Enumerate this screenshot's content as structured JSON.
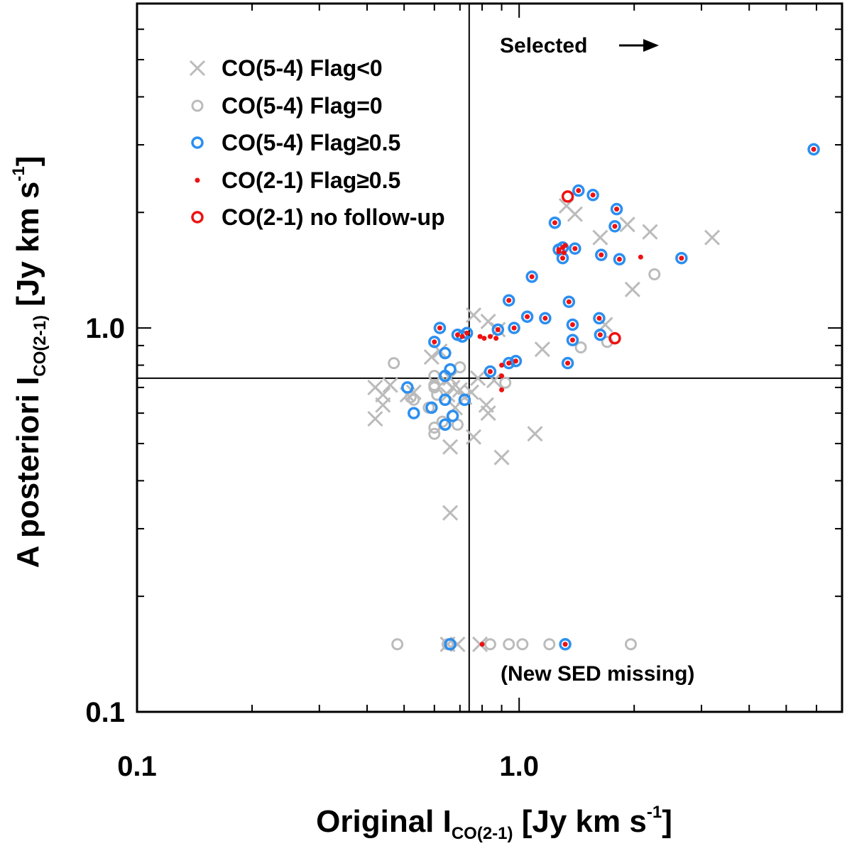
{
  "chart_data": {
    "type": "scatter",
    "x_scale": "log",
    "y_scale": "log",
    "xlim": [
      0.1,
      7.0
    ],
    "ylim": [
      0.1,
      7.0
    ],
    "xlabel": {
      "main": "Original I",
      "sub": "CO(2-1)",
      "units": " [Jy km s",
      "sup": "-1",
      "end": "]"
    },
    "ylabel": {
      "main": "A posteriori I",
      "sub": "CO(2-1)",
      "units": " [Jy km s",
      "sup": "-1",
      "end": "]"
    },
    "x_tick_labels": [
      {
        "value": 0.1,
        "label": "0.1"
      },
      {
        "value": 1.0,
        "label": "1.0"
      }
    ],
    "y_tick_labels": [
      {
        "value": 0.1,
        "label": "0.1"
      },
      {
        "value": 1.0,
        "label": "1.0"
      }
    ],
    "thresholds": {
      "x": 0.74,
      "y": 0.74
    },
    "annotations": {
      "selected": "Selected",
      "missing": "(New SED missing)"
    },
    "colors": {
      "gray": "#bbbbbb",
      "blue": "#2b8ff0",
      "red": "#ee1111",
      "line": "#000000"
    },
    "series": [
      {
        "name": "CO(5-4) Flag<0",
        "marker": "x",
        "points": [
          [
            0.42,
            0.7
          ],
          [
            0.44,
            0.67
          ],
          [
            0.46,
            0.71
          ],
          [
            0.51,
            0.67
          ],
          [
            0.53,
            0.68
          ],
          [
            0.42,
            0.58
          ],
          [
            0.59,
            0.84
          ],
          [
            0.62,
            0.87
          ],
          [
            0.64,
            0.73
          ],
          [
            0.65,
            0.67
          ],
          [
            0.66,
            0.74
          ],
          [
            0.67,
            0.7
          ],
          [
            0.68,
            0.62
          ],
          [
            0.7,
            0.69
          ],
          [
            0.72,
            0.66
          ],
          [
            0.75,
            0.68
          ],
          [
            0.76,
            1.08
          ],
          [
            0.78,
            0.74
          ],
          [
            0.83,
            1.04
          ],
          [
            0.86,
            0.73
          ],
          [
            0.88,
            0.99
          ],
          [
            0.82,
            0.63
          ],
          [
            0.83,
            0.6
          ],
          [
            0.76,
            0.52
          ],
          [
            0.66,
            0.49
          ],
          [
            0.66,
            0.33
          ],
          [
            0.9,
            0.46
          ],
          [
            1.1,
            0.53
          ],
          [
            1.15,
            0.88
          ],
          [
            1.33,
            2.08
          ],
          [
            1.4,
            1.98
          ],
          [
            1.63,
            1.72
          ],
          [
            1.68,
            1.02
          ],
          [
            1.92,
            1.86
          ],
          [
            1.98,
            1.26
          ],
          [
            2.2,
            1.78
          ],
          [
            3.2,
            1.72
          ],
          [
            0.65,
            0.15
          ],
          [
            0.69,
            0.15
          ],
          [
            0.79,
            0.15
          ],
          [
            0.44,
            0.63
          ]
        ]
      },
      {
        "name": "CO(5-4) Flag=0",
        "marker": "open-circle",
        "points": [
          [
            0.47,
            0.81
          ],
          [
            0.52,
            0.66
          ],
          [
            0.53,
            0.65
          ],
          [
            0.58,
            0.62
          ],
          [
            0.6,
            0.75
          ],
          [
            0.6,
            0.71
          ],
          [
            0.6,
            0.7
          ],
          [
            0.61,
            0.67
          ],
          [
            0.63,
            0.57
          ],
          [
            0.6,
            0.55
          ],
          [
            0.6,
            0.53
          ],
          [
            0.69,
            0.56
          ],
          [
            0.7,
            0.79
          ],
          [
            0.92,
            0.72
          ],
          [
            1.45,
            0.89
          ],
          [
            1.7,
            0.92
          ],
          [
            2.26,
            1.38
          ],
          [
            0.48,
            0.15
          ],
          [
            0.65,
            0.15
          ],
          [
            0.84,
            0.15
          ],
          [
            0.94,
            0.15
          ],
          [
            1.02,
            0.15
          ],
          [
            1.2,
            0.15
          ],
          [
            1.96,
            0.15
          ]
        ]
      },
      {
        "name": "CO(5-4) Flag≥0.5",
        "marker": "blue-circle",
        "points": [
          [
            0.62,
            1.0
          ],
          [
            0.6,
            0.92
          ],
          [
            0.69,
            0.96
          ],
          [
            0.71,
            0.95
          ],
          [
            0.64,
            0.86
          ],
          [
            0.73,
            0.97
          ],
          [
            0.66,
            0.78
          ],
          [
            0.64,
            0.75
          ],
          [
            0.51,
            0.7
          ],
          [
            0.64,
            0.65
          ],
          [
            0.72,
            0.65
          ],
          [
            0.59,
            0.62
          ],
          [
            0.67,
            0.59
          ],
          [
            0.64,
            0.56
          ],
          [
            0.53,
            0.6
          ],
          [
            0.84,
            0.77
          ],
          [
            0.94,
            0.81
          ],
          [
            0.98,
            0.82
          ],
          [
            0.94,
            1.18
          ],
          [
            1.08,
            1.36
          ],
          [
            1.27,
            1.6
          ],
          [
            1.3,
            1.62
          ],
          [
            1.4,
            1.61
          ],
          [
            1.3,
            1.52
          ],
          [
            1.24,
            1.88
          ],
          [
            1.43,
            2.28
          ],
          [
            1.56,
            2.22
          ],
          [
            1.64,
            1.55
          ],
          [
            1.83,
            1.51
          ],
          [
            1.78,
            1.84
          ],
          [
            1.8,
            2.04
          ],
          [
            1.35,
            1.17
          ],
          [
            1.17,
            1.06
          ],
          [
            1.38,
            1.02
          ],
          [
            1.62,
            1.06
          ],
          [
            1.38,
            0.93
          ],
          [
            1.63,
            0.96
          ],
          [
            1.05,
            1.07
          ],
          [
            0.97,
            1.0
          ],
          [
            0.88,
            0.99
          ],
          [
            1.34,
            0.81
          ],
          [
            2.66,
            1.52
          ],
          [
            5.9,
            2.92
          ],
          [
            0.66,
            0.15
          ],
          [
            1.32,
            0.15
          ]
        ]
      },
      {
        "name": "CO(2-1) Flag≥0.5",
        "marker": "red-dot",
        "points": [
          [
            0.62,
            1.0
          ],
          [
            0.6,
            0.92
          ],
          [
            0.69,
            0.96
          ],
          [
            0.71,
            0.95
          ],
          [
            0.73,
            0.97
          ],
          [
            0.79,
            0.95
          ],
          [
            0.81,
            0.94
          ],
          [
            0.84,
            0.95
          ],
          [
            0.87,
            0.94
          ],
          [
            0.84,
            0.77
          ],
          [
            0.94,
            0.81
          ],
          [
            0.98,
            0.82
          ],
          [
            0.9,
            0.8
          ],
          [
            0.9,
            0.75
          ],
          [
            0.9,
            0.69
          ],
          [
            0.94,
            1.18
          ],
          [
            1.08,
            1.36
          ],
          [
            1.27,
            1.6
          ],
          [
            1.3,
            1.62
          ],
          [
            1.4,
            1.61
          ],
          [
            1.3,
            1.52
          ],
          [
            1.27,
            1.58
          ],
          [
            1.31,
            1.57
          ],
          [
            1.32,
            1.64
          ],
          [
            1.24,
            1.88
          ],
          [
            1.43,
            2.28
          ],
          [
            1.56,
            2.22
          ],
          [
            1.64,
            1.55
          ],
          [
            1.83,
            1.51
          ],
          [
            1.78,
            1.84
          ],
          [
            1.8,
            2.04
          ],
          [
            1.35,
            1.17
          ],
          [
            1.17,
            1.06
          ],
          [
            1.38,
            1.02
          ],
          [
            1.62,
            1.06
          ],
          [
            1.38,
            0.93
          ],
          [
            1.63,
            0.96
          ],
          [
            1.05,
            1.07
          ],
          [
            0.97,
            1.0
          ],
          [
            0.88,
            0.99
          ],
          [
            1.34,
            0.81
          ],
          [
            2.66,
            1.52
          ],
          [
            2.08,
            1.53
          ],
          [
            5.9,
            2.92
          ],
          [
            0.8,
            0.15
          ],
          [
            1.32,
            0.15
          ]
        ]
      },
      {
        "name": "CO(2-1) no follow-up",
        "marker": "red-circle",
        "points": [
          [
            1.34,
            2.2
          ],
          [
            1.78,
            0.94
          ]
        ]
      }
    ]
  }
}
